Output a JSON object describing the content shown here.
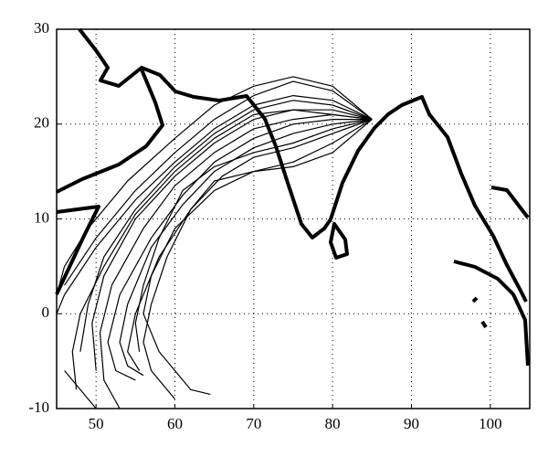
{
  "chart_data": {
    "type": "line",
    "xlim": [
      45,
      105
    ],
    "xticks": [
      50,
      60,
      70,
      80,
      90,
      100
    ],
    "ylim": [
      -10,
      30
    ],
    "yticks": [
      -10,
      0,
      10,
      20,
      30
    ],
    "grid": true,
    "series": [
      {
        "color": "#000000",
        "x": [
          85,
          80,
          75,
          70,
          65,
          60,
          55,
          50,
          46
        ],
        "values": [
          20.5,
          23.5,
          24.5,
          23,
          20.5,
          17,
          13,
          8,
          3
        ]
      },
      {
        "color": "#000000",
        "x": [
          85,
          80,
          75,
          70,
          65,
          60,
          55,
          51,
          49,
          48
        ],
        "values": [
          20.5,
          22,
          22.5,
          21.5,
          19,
          15.5,
          11,
          6,
          1,
          -4
        ]
      },
      {
        "color": "#000000",
        "x": [
          85,
          80,
          75,
          70,
          65,
          60,
          55,
          51,
          49.5,
          50
        ],
        "values": [
          20.5,
          21.5,
          21.5,
          20.5,
          18,
          14.5,
          10,
          4,
          -1,
          -6
        ]
      },
      {
        "color": "#000000",
        "x": [
          85,
          80,
          75,
          70,
          65,
          60,
          56,
          52,
          50.5,
          51,
          53
        ],
        "values": [
          20.5,
          21,
          20.5,
          19.5,
          17,
          13.5,
          9,
          3,
          -2,
          -7,
          -10
        ]
      },
      {
        "color": "#000000",
        "x": [
          85,
          80,
          75,
          70,
          65,
          61,
          57,
          53,
          51.5,
          52.5,
          55
        ],
        "values": [
          20.5,
          20.5,
          20,
          18.5,
          16,
          12.5,
          8,
          2,
          -3,
          -6,
          -7
        ]
      },
      {
        "color": "#000000",
        "x": [
          85,
          80,
          75,
          70,
          65,
          61,
          57,
          54,
          53,
          54,
          56
        ],
        "values": [
          20.5,
          20,
          19,
          17.5,
          15,
          11.5,
          7,
          1,
          -3,
          -5.5,
          -6.5
        ]
      },
      {
        "color": "#000000",
        "x": [
          85,
          80,
          75,
          70,
          65,
          60,
          55,
          50,
          46,
          45
        ],
        "values": [
          20.5,
          22.5,
          23,
          22,
          19.5,
          16,
          12,
          7,
          2,
          0
        ]
      },
      {
        "color": "#000000",
        "x": [
          85,
          80,
          75,
          70,
          66,
          62,
          58,
          55,
          54,
          55.5
        ],
        "values": [
          20.5,
          19,
          17.5,
          16.5,
          14.5,
          11,
          6,
          0,
          -4,
          -6
        ]
      },
      {
        "color": "#000000",
        "x": [
          85,
          80,
          75,
          70,
          65,
          62,
          59,
          57,
          56,
          57,
          60
        ],
        "values": [
          20.5,
          18,
          16,
          15,
          14,
          11,
          6,
          1,
          -3,
          -6,
          -9
        ]
      },
      {
        "color": "#000000",
        "x": [
          85,
          80,
          75,
          70,
          65,
          60,
          57,
          56,
          58,
          62,
          64.5
        ],
        "values": [
          20.5,
          17,
          15.5,
          15,
          13,
          9,
          4,
          0,
          -4,
          -8,
          -8.5
        ]
      },
      {
        "color": "#000000",
        "x": [
          85,
          80,
          75,
          70,
          65,
          60,
          54,
          49,
          46,
          45
        ],
        "values": [
          20.5,
          24,
          25,
          24,
          22,
          18.5,
          14,
          9,
          5,
          2
        ]
      },
      {
        "color": "#000000",
        "x": [
          85,
          80,
          75,
          70,
          65,
          60,
          55,
          51,
          48,
          47,
          47.5
        ],
        "values": [
          20.5,
          21,
          21.5,
          21,
          18.5,
          15,
          10.5,
          5,
          0,
          -4,
          -8
        ]
      },
      {
        "color": "#000000",
        "x": [
          46,
          48,
          50
        ],
        "values": [
          -6,
          -8,
          -10
        ]
      },
      {
        "color": "#000000",
        "x": [
          85,
          80,
          75,
          70,
          65,
          61,
          58,
          56,
          55,
          55.5
        ],
        "values": [
          20.5,
          19.5,
          18,
          17,
          15.5,
          13,
          8,
          3,
          -1,
          -4
        ]
      }
    ]
  }
}
